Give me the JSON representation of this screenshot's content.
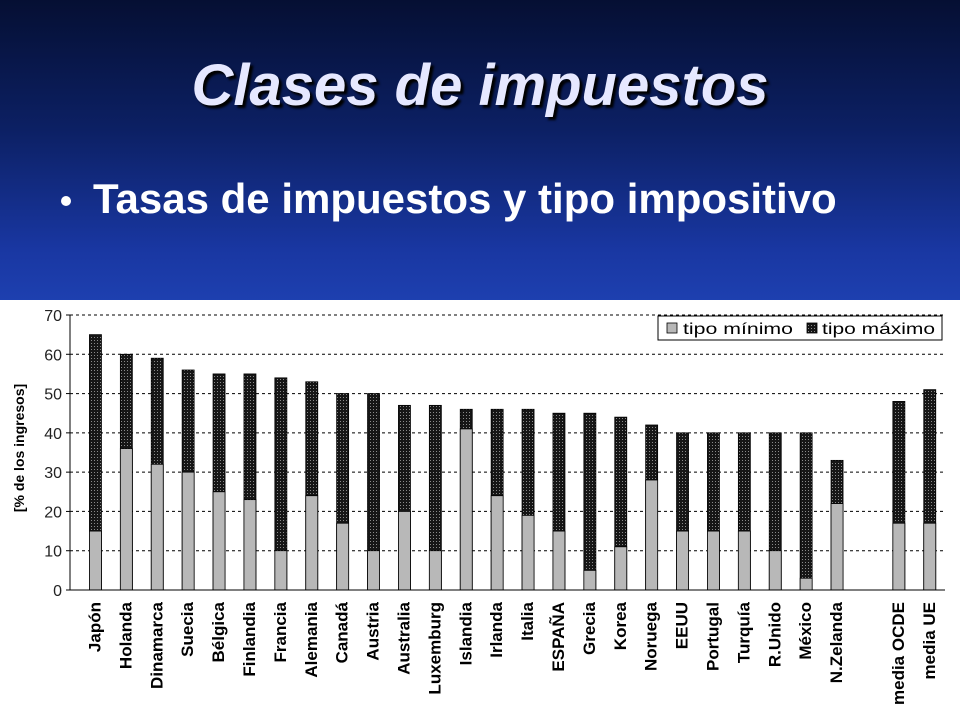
{
  "slide": {
    "title": "Clases de impuestos",
    "bullet_text": "Tasas de impuestos y tipo impositivo"
  },
  "colors": {
    "title_text": "#e6e8ff",
    "bullet_text": "#ffffff",
    "background_top": "#050f33",
    "background_bottom": "#1f43b5",
    "min_bar": "#b8b8b8",
    "max_bar": "#161616",
    "chart_background": "#ffffff"
  },
  "chart_data": {
    "type": "bar",
    "bar_mode": "overlay",
    "categories": [
      "Japón",
      "Holanda",
      "Dinamarca",
      "Suecia",
      "Bélgica",
      "Finlandia",
      "Francia",
      "Alemania",
      "Canadá",
      "Austria",
      "Australia",
      "Luxemburg",
      "Islandia",
      "Irlanda",
      "Italia",
      "ESPAÑA",
      "Grecia",
      "Korea",
      "Noruega",
      "EEUU",
      "Portugal",
      "Turquía",
      "R.Unido",
      "México",
      "N.Zelanda",
      "media OCDE",
      "media UE"
    ],
    "series": [
      {
        "name": "tipo mínimo",
        "values": [
          15,
          36,
          32,
          30,
          25,
          23,
          10,
          24,
          17,
          10,
          20,
          10,
          41,
          24,
          19,
          15,
          5,
          11,
          28,
          15,
          15,
          15,
          10,
          3,
          22,
          17,
          17
        ]
      },
      {
        "name": "tipo máximo",
        "values": [
          65,
          60,
          59,
          56,
          55,
          55,
          54,
          53,
          50,
          50,
          47,
          47,
          46,
          46,
          46,
          45,
          45,
          44,
          42,
          40,
          40,
          40,
          40,
          40,
          33,
          48,
          51
        ]
      }
    ],
    "ylabel": "[% de los ingresos]",
    "ylim": [
      0,
      70
    ],
    "yticks": [
      0,
      10,
      20,
      30,
      40,
      50,
      60,
      70
    ],
    "grid": true,
    "legend": "top-right"
  }
}
